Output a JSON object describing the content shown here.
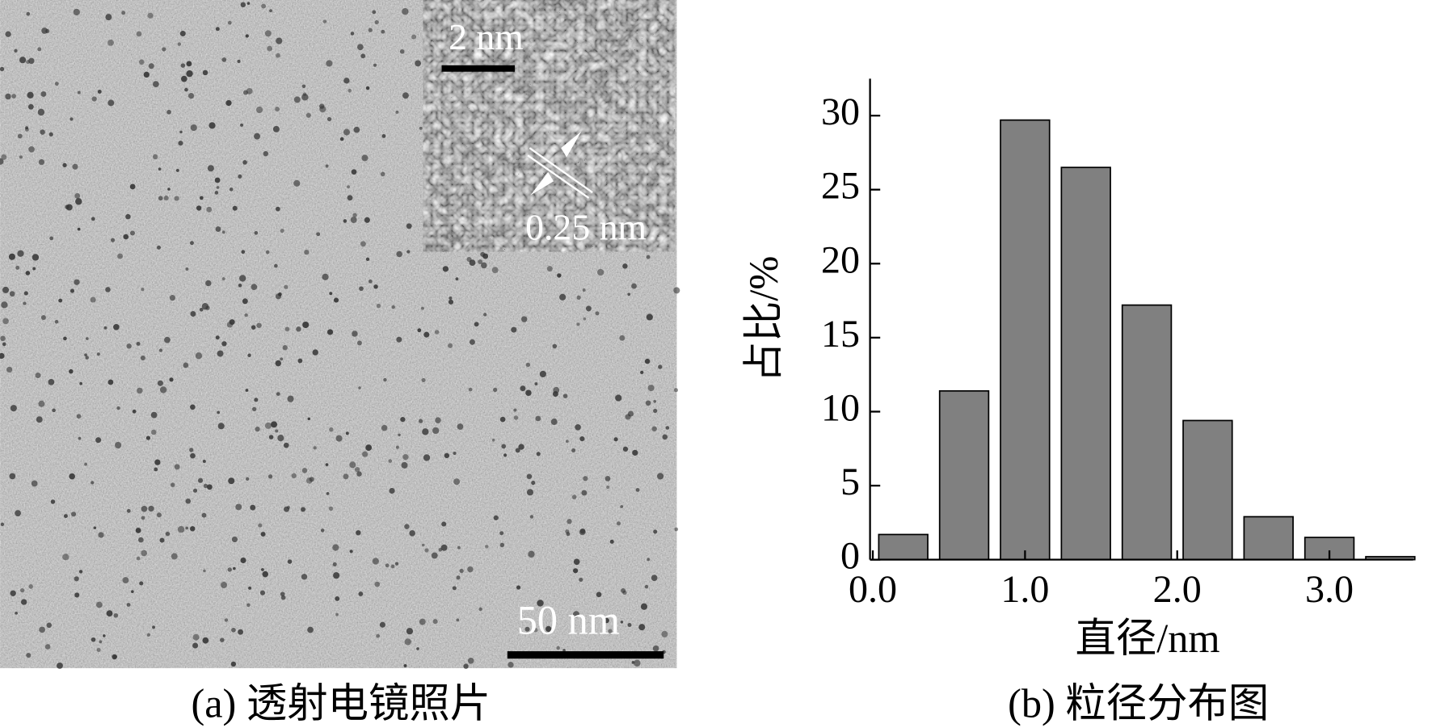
{
  "image_panel": {
    "inset_scale_label": "2 nm",
    "lattice_label": "0.25 nm",
    "scale_label": "50 nm",
    "caption": "(a) 透射电镜照片"
  },
  "chart_data": {
    "type": "bar",
    "caption": "(b) 粒径分布图",
    "y_label": "占比/%",
    "x_label": "直径/nm",
    "x": [
      0.2,
      0.6,
      1.0,
      1.4,
      1.8,
      2.2,
      2.6,
      3.0,
      3.4
    ],
    "values": [
      1.7,
      11.4,
      29.7,
      26.5,
      17.2,
      9.4,
      2.9,
      1.5,
      0.2
    ],
    "color": "#808080",
    "xlim": [
      0,
      3.55
    ],
    "xticks": [
      {
        "value": 0,
        "label": "0.0"
      },
      {
        "value": 1,
        "label": "1.0"
      },
      {
        "value": 2,
        "label": "2.0"
      },
      {
        "value": 3,
        "label": "3.0"
      }
    ],
    "ylim": [
      0,
      32.5
    ],
    "yticks": [
      0,
      5,
      10,
      15,
      20,
      25,
      30
    ]
  }
}
